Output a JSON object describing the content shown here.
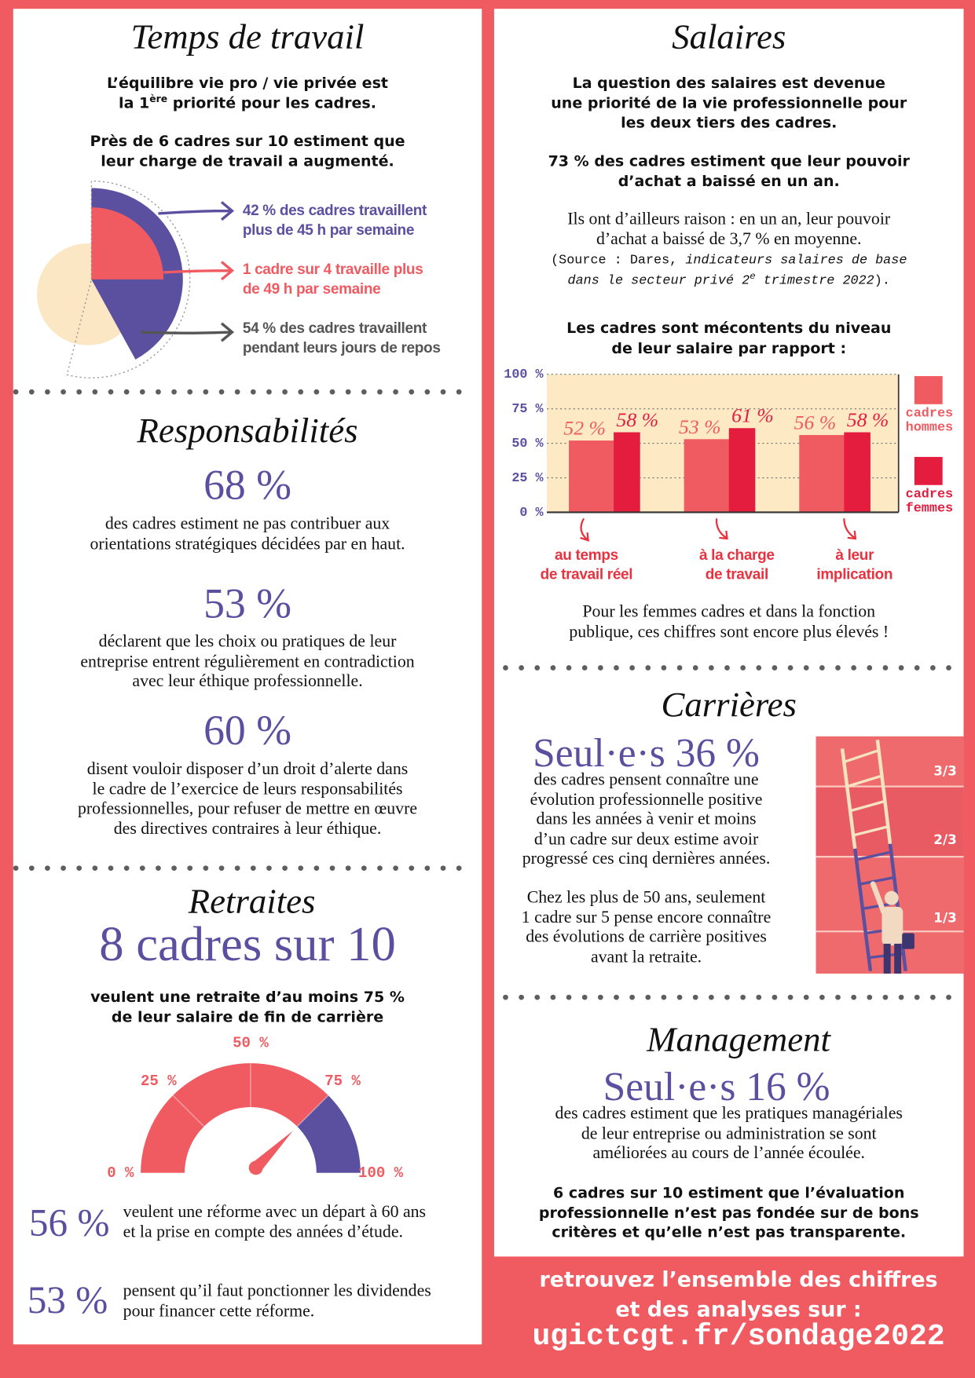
{
  "temps_de_travail": {
    "title": "Temps de travail",
    "intro": [
      "L’équilibre vie pro / vie privée est\nla 1",
      "ère",
      " priorité pour les cadres."
    ],
    "charge": "Près de 6 cadres sur 10 estiment que\nleur charge de travail a augmenté.",
    "callouts": [
      "42 % des cadres travaillent\nplus de 45 h par semaine",
      "1 cadre sur 4 travaille plus\nde 49 h par semaine",
      "54 % des cadres travaillent\npendant leurs jours de repos"
    ],
    "sector_values": [
      42,
      25,
      54
    ]
  },
  "responsabilites": {
    "title": "Responsabilités",
    "items": [
      {
        "figure": "68 %",
        "text": "des cadres estiment ne pas contribuer aux\norientations stratégiques décidées par en haut."
      },
      {
        "figure": "53 %",
        "text": "déclarent que les choix ou pratiques de leur\nentreprise entrent régulièrement en contradiction\navec leur éthique professionnelle."
      },
      {
        "figure": "60 %",
        "text": "disent vouloir disposer d’un droit d’alerte dans\nle cadre de l’exercice de leurs responsabilités\nprofessionnelles, pour refuser de mettre en œuvre\ndes directives contraires à leur éthique."
      }
    ]
  },
  "retraites": {
    "title": "Retraites",
    "headline": "8 cadres sur 10",
    "subline": "veulent une retraite d’au moins 75 %\nde leur salaire de fin de carrière",
    "gauge": {
      "lim": [
        0,
        100
      ],
      "ticks": [
        {
          "value": 0,
          "label": "0 %"
        },
        {
          "value": 25,
          "label": "25 %"
        },
        {
          "value": 50,
          "label": "50 %"
        },
        {
          "value": 75,
          "label": "75 %"
        },
        {
          "value": 100,
          "label": "100 %"
        }
      ],
      "value": 75
    },
    "items": [
      {
        "figure": "56 %",
        "text": "veulent une réforme avec un départ à 60 ans\net la prise en compte des années d’étude."
      },
      {
        "figure": "53 %",
        "text": "pensent qu’il faut ponctionner les dividendes\npour financer cette réforme."
      }
    ]
  },
  "salaires": {
    "title": "Salaires",
    "lead": "La question des salaires est devenue\nune priorité de la vie professionnelle pour\nles deux tiers des cadres.",
    "pouvoir": "73 % des cadres estiment que leur pouvoir\nd’achat a baissé en un an.",
    "raison": "Ils ont d’ailleurs raison : en un an, leur pouvoir\nd’achat a baissé de 3,7 % en moyenne.",
    "source": [
      "(",
      "Source : Dares, ",
      "indicateurs salaires de base\ndans le secteur privé 2",
      "e",
      " trimestre 2022",
      ")."
    ],
    "note": "Pour les femmes cadres et dans la fonction\npublique, ces chiffres sont encore plus élevés !"
  },
  "chart_data": {
    "type": "bar",
    "title": "Les cadres sont mécontents du niveau\nde leur salaire par rapport :",
    "categories": [
      "au temps\nde travail réel",
      "à la charge\nde travail",
      "à leur\nimplication"
    ],
    "series": [
      {
        "name": "cadres\nhommes",
        "color": "#ef5b61",
        "values": [
          52,
          53,
          56
        ],
        "value_labels": [
          "52 %",
          "53 %",
          "56 %"
        ]
      },
      {
        "name": "cadres\nfemmes",
        "color": "#e41d3f",
        "values": [
          58,
          61,
          58
        ],
        "value_labels": [
          "58 %",
          "61 %",
          "58 %"
        ]
      }
    ],
    "ylim": [
      0,
      100
    ],
    "yticks": [
      {
        "value": 0,
        "label": "0 %"
      },
      {
        "value": 25,
        "label": "25 %"
      },
      {
        "value": 50,
        "label": "50 %"
      },
      {
        "value": 75,
        "label": "75 %"
      },
      {
        "value": 100,
        "label": "100 %"
      }
    ],
    "grid": true
  },
  "carrieres": {
    "title": "Carrières",
    "figure": "Seul·e·s 36 %",
    "text": "des cadres pensent connaître une\névolution professionnelle positive\ndans les années à venir et moins\nd’un cadre sur deux estime avoir\nprogressé ces cinq dernières années.",
    "text2": "Chez les plus de 50 ans, seulement\n1 cadre sur 5 pense encore connaître\ndes évolutions de carrière positives\navant la retraite.",
    "ladder_labels": [
      "3/3",
      "2/3",
      "1/3"
    ]
  },
  "management": {
    "title": "Management",
    "figure": "Seul·e·s 16 %",
    "text": "des cadres estiment que les pratiques managériales\nde leur entreprise ou administration se sont\naméliorées au cours de l’année écoulée.",
    "bold": "6 cadres sur 10 estiment que l’évaluation\nprofessionnelle n’est pas fondée sur de bons\ncritères et qu’elle n’est pas transparente."
  },
  "footer": {
    "text": "retrouvez l’ensemble des chiffres\net des analyses sur :",
    "url": "ugictcgt.fr/sondage2022"
  }
}
